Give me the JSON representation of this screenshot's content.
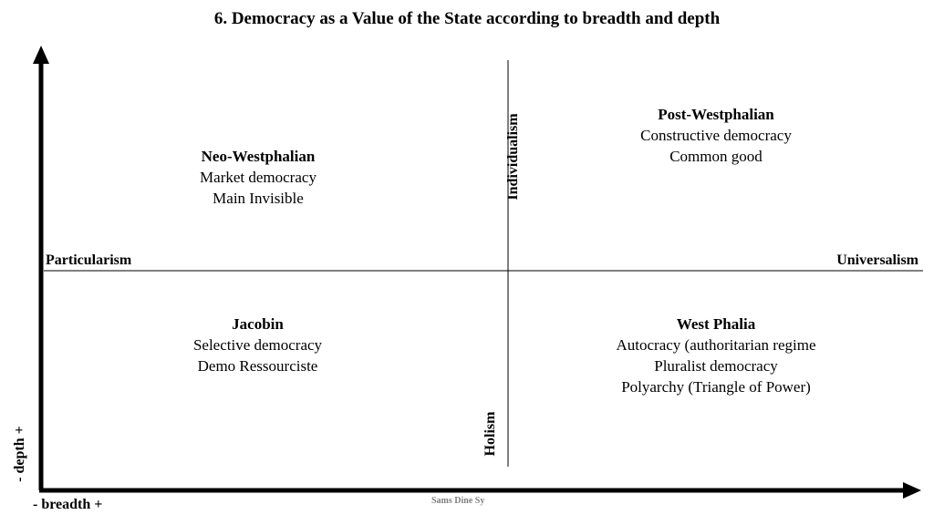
{
  "title": "6. Democracy as a Value of the State according to breadth and depth",
  "axes": {
    "horizontal_left": "Particularism",
    "horizontal_right": "Universalism",
    "vertical_top": "Individualism",
    "vertical_bottom": "Holism",
    "y_axis_label": "- depth +",
    "x_axis_label": "- breadth +"
  },
  "quadrants": {
    "top_left": {
      "heading": "Neo-Westphalian",
      "lines": [
        "Market democracy",
        "Main Invisible"
      ]
    },
    "top_right": {
      "heading": "Post-Westphalian",
      "lines": [
        "Constructive democracy",
        "Common good"
      ]
    },
    "bottom_left": {
      "heading": "Jacobin",
      "lines": [
        "Selective democracy",
        "Demo Ressourciste"
      ]
    },
    "bottom_right": {
      "heading": "West Phalia",
      "lines": [
        "Autocracy (authoritarian regime",
        "Pluralist democracy",
        "Polyarchy (Triangle of Power)"
      ]
    }
  },
  "credit": "Sams Dine Sy"
}
